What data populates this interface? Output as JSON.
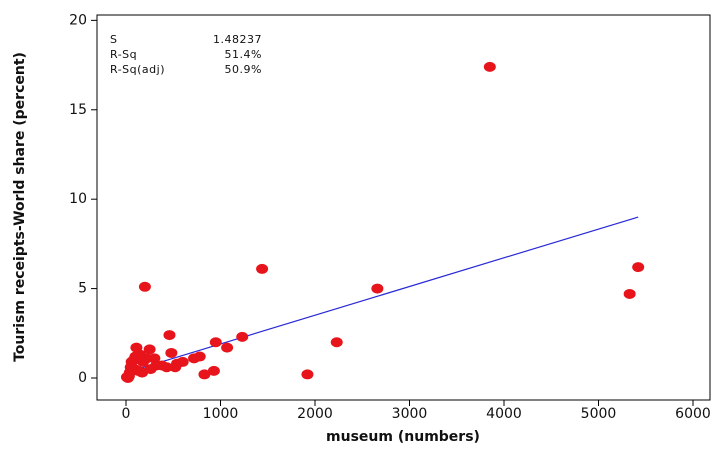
{
  "chart_data": {
    "type": "scatter",
    "x_label": "museum (numbers)",
    "y_label": "Tourism receipts-World share (percent)",
    "stats": [
      [
        "S",
        "1.48237"
      ],
      [
        "R-Sq",
        "51.4%"
      ],
      [
        "R-Sq(adj)",
        "50.9%"
      ]
    ],
    "xlim": [
      -307,
      6180
    ],
    "ylim": [
      -1.23,
      20.3
    ],
    "xticks": [
      0,
      1000,
      2000,
      3000,
      4000,
      5000,
      6000
    ],
    "yticks": [
      0,
      5,
      10,
      15,
      20
    ],
    "points": {
      "color": "#e8141b",
      "x": [
        3850,
        5420,
        5330,
        1440,
        2660,
        200,
        2230,
        1920,
        1230,
        1070,
        950,
        930,
        830,
        780,
        720,
        460,
        480,
        540,
        520,
        430,
        380,
        320,
        300,
        250,
        220,
        180,
        150,
        110,
        100,
        90,
        60,
        40,
        30,
        20,
        10,
        50,
        130,
        170,
        260,
        600,
        80
      ],
      "values": [
        17.4,
        6.2,
        4.7,
        6.1,
        5.0,
        5.1,
        2.0,
        0.2,
        2.3,
        1.7,
        2.0,
        0.4,
        0.2,
        1.2,
        1.1,
        2.4,
        1.4,
        0.8,
        0.6,
        0.6,
        0.7,
        0.7,
        1.1,
        1.6,
        1.1,
        0.9,
        1.3,
        1.7,
        1.2,
        0.5,
        0.9,
        0.3,
        0.1,
        0,
        0.05,
        0.6,
        0.4,
        0.3,
        0.5,
        0.9,
        1.0
      ]
    },
    "fit_line": {
      "color": "#2a2ad6",
      "x": [
        50,
        5420
      ],
      "values": [
        0.38,
        9.0
      ]
    }
  }
}
